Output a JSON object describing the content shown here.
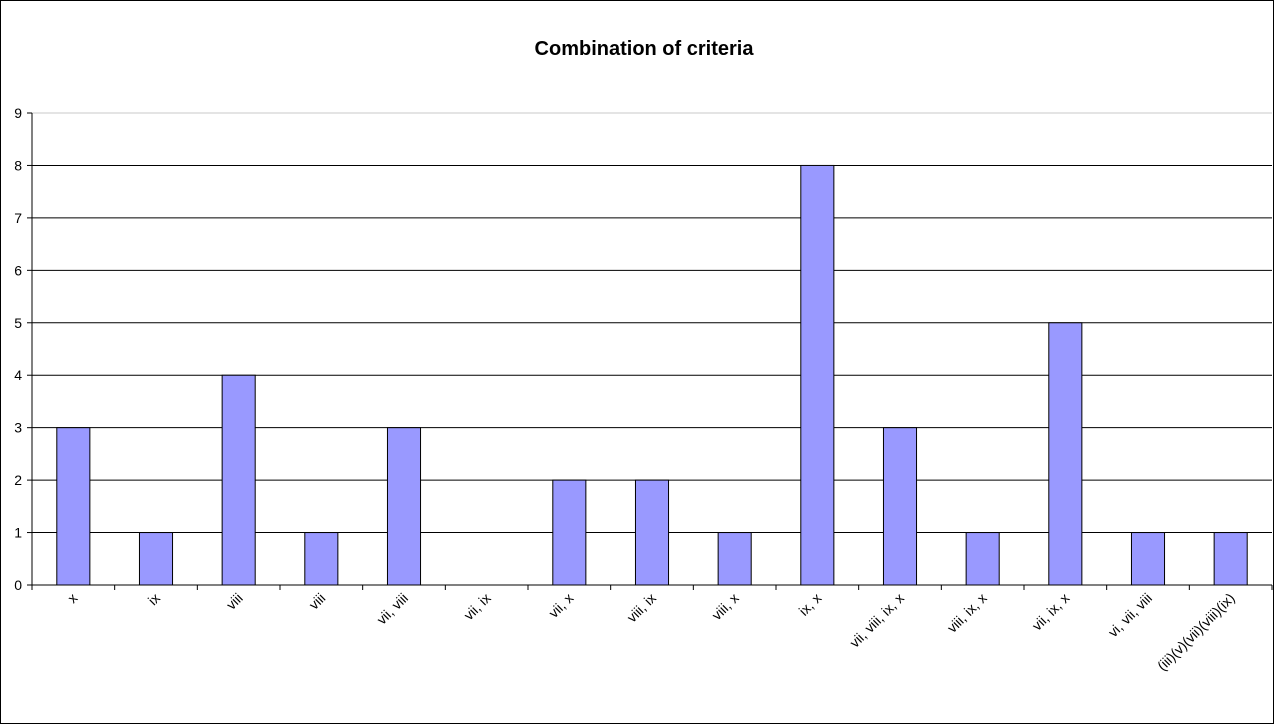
{
  "chart_data": {
    "type": "bar",
    "title": "Combination of criteria",
    "xlabel": "",
    "ylabel": "",
    "categories": [
      "x",
      "ix",
      "viii",
      "viii",
      "vii, viii",
      "vii, ix",
      "vii, x",
      "viii, ix",
      "viii, x",
      "ix, x",
      "vii, viii, ix, x",
      "viii, ix, x",
      "vii, ix, x",
      "vi, vii, viii",
      "(iii)(v)(vii)(viii)(ix)"
    ],
    "values": [
      3,
      1,
      4,
      1,
      3,
      0,
      2,
      2,
      1,
      8,
      3,
      1,
      5,
      1,
      1
    ],
    "ylim": [
      0,
      9
    ],
    "yticks": [
      0,
      1,
      2,
      3,
      4,
      5,
      6,
      7,
      8,
      9
    ],
    "grid": true,
    "legend": "none",
    "colors": {
      "bar_fill": "#9999ff",
      "bar_stroke": "#000000",
      "gridline": "#000000",
      "background": "#ffffff"
    }
  }
}
